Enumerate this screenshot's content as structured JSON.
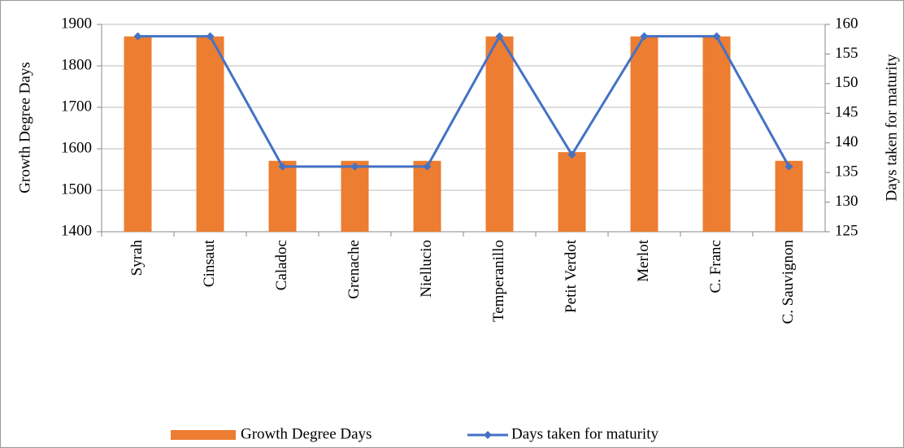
{
  "chart_data": {
    "type": "bar-line",
    "categories": [
      "Syrah",
      "Cinsaut",
      "Caladoc",
      "Grenache",
      "Niellucio",
      "Temperanillo",
      "Petit Verdot",
      "Merlot",
      "C. Franc",
      "C. Sauvignon"
    ],
    "series": [
      {
        "name": "Growth Degree Days",
        "type": "bar",
        "color": "#ed7d31",
        "values": [
          1871,
          1871,
          1571,
          1571,
          1571,
          1871,
          1592,
          1871,
          1871,
          1571
        ]
      },
      {
        "name": "Days taken for maturity",
        "type": "line",
        "axis": "y2",
        "color": "#4472c4",
        "values": [
          158,
          158,
          136,
          136,
          136,
          158,
          138,
          158,
          158,
          136
        ]
      }
    ],
    "y_label": "Growth Degree Days",
    "y2_label": "Days taken for maturity",
    "ylim": [
      1400,
      1900
    ],
    "yticks": [
      1400,
      1500,
      1600,
      1700,
      1800,
      1900
    ],
    "y2lim": [
      125,
      160
    ],
    "y2ticks": [
      125,
      130,
      135,
      140,
      145,
      150,
      155,
      160
    ],
    "grid": true,
    "legend": "bottom"
  }
}
